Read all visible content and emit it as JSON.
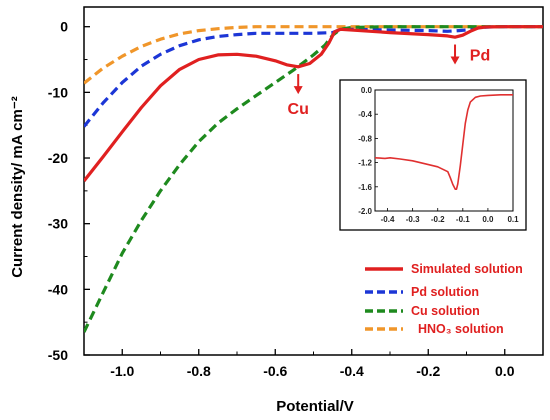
{
  "chart_data": {
    "type": "line",
    "xlabel": "Potential/V",
    "ylabel": "Current density/ mA cm⁻²",
    "xlim": [
      -1.1,
      0.1
    ],
    "ylim": [
      -50,
      3
    ],
    "xticks": [
      -1.0,
      -0.8,
      -0.6,
      -0.4,
      -0.2,
      0.0
    ],
    "xtick_labels": [
      "-1.0",
      "-0.8",
      "-0.6",
      "-0.4",
      "-0.2",
      "0.0"
    ],
    "yticks": [
      0,
      -10,
      -20,
      -30,
      -40,
      -50
    ],
    "ytick_labels": [
      "0",
      "-10",
      "-20",
      "-30",
      "-40",
      "-50"
    ],
    "grid": false,
    "legend_position": "bottom-right",
    "series": [
      {
        "name": "Simulated solution",
        "color": "#e02020",
        "style": "solid",
        "x": [
          -1.1,
          -1.05,
          -1.0,
          -0.95,
          -0.9,
          -0.85,
          -0.8,
          -0.75,
          -0.7,
          -0.65,
          -0.6,
          -0.57,
          -0.54,
          -0.51,
          -0.48,
          -0.46,
          -0.445,
          -0.43,
          -0.4,
          -0.3,
          -0.2,
          -0.15,
          -0.13,
          -0.11,
          -0.09,
          -0.07,
          -0.05,
          0.0,
          0.05,
          0.1
        ],
        "y": [
          -23.5,
          -19.8,
          -16.0,
          -12.3,
          -9.0,
          -6.5,
          -5.0,
          -4.3,
          -4.2,
          -4.5,
          -5.2,
          -5.8,
          -6.1,
          -5.6,
          -4.2,
          -2.5,
          -0.8,
          -0.4,
          -0.5,
          -0.9,
          -1.2,
          -1.4,
          -1.6,
          -1.3,
          -0.7,
          -0.2,
          -0.05,
          0.0,
          0.0,
          0.0
        ]
      },
      {
        "name": "Pd solution",
        "color": "#1c36d6",
        "style": "dashed",
        "x": [
          -1.1,
          -1.05,
          -1.0,
          -0.95,
          -0.9,
          -0.85,
          -0.8,
          -0.75,
          -0.7,
          -0.65,
          -0.6,
          -0.5,
          -0.45,
          -0.43,
          -0.4,
          -0.3,
          -0.2,
          -0.15,
          -0.12,
          -0.1,
          -0.08,
          -0.06,
          -0.04,
          0.0,
          0.05,
          0.1
        ],
        "y": [
          -15.2,
          -11.6,
          -8.5,
          -6.0,
          -4.2,
          -2.9,
          -2.0,
          -1.5,
          -1.2,
          -1.0,
          -1.0,
          -1.0,
          -0.9,
          -0.4,
          -0.4,
          -0.5,
          -0.6,
          -0.7,
          -0.6,
          -0.5,
          -0.3,
          -0.1,
          -0.05,
          0.0,
          0.0,
          0.0
        ]
      },
      {
        "name": "Cu solution",
        "color": "#1e8a1e",
        "style": "dashed",
        "x": [
          -1.1,
          -1.05,
          -1.0,
          -0.95,
          -0.9,
          -0.85,
          -0.8,
          -0.75,
          -0.7,
          -0.65,
          -0.6,
          -0.55,
          -0.5,
          -0.47,
          -0.45,
          -0.43,
          -0.4,
          -0.3,
          -0.2,
          -0.1,
          0.0,
          0.1
        ],
        "y": [
          -46.5,
          -40.5,
          -34.5,
          -29.5,
          -25.0,
          -21.0,
          -17.5,
          -14.7,
          -12.5,
          -10.5,
          -8.5,
          -6.5,
          -4.3,
          -2.8,
          -1.3,
          -0.4,
          -0.1,
          0.0,
          0.0,
          0.0,
          0.0,
          0.0
        ]
      },
      {
        "name": "HNO₃ solution",
        "color": "#f0962a",
        "style": "dashed",
        "x": [
          -1.1,
          -1.05,
          -1.0,
          -0.95,
          -0.9,
          -0.85,
          -0.8,
          -0.75,
          -0.7,
          -0.65,
          -0.6,
          -0.5,
          -0.4,
          -0.3,
          -0.2,
          -0.1,
          0.0,
          0.1
        ],
        "y": [
          -8.6,
          -6.3,
          -4.5,
          -3.0,
          -1.9,
          -1.1,
          -0.6,
          -0.3,
          -0.1,
          0.0,
          0.0,
          0.0,
          0.0,
          0.0,
          0.0,
          0.0,
          0.0,
          0.0
        ]
      }
    ],
    "annotations": [
      {
        "text": "Cu",
        "x": -0.54,
        "y": -6.3,
        "color": "#e02020"
      },
      {
        "text": "Pd",
        "x": -0.13,
        "y": -1.8,
        "color": "#e02020"
      }
    ],
    "inset": {
      "type": "line",
      "xlim": [
        -0.45,
        0.1
      ],
      "ylim": [
        -2.0,
        0.0
      ],
      "xticks": [
        -0.4,
        -0.3,
        -0.2,
        -0.1,
        0.0,
        0.1
      ],
      "xtick_labels": [
        "-0.4",
        "-0.3",
        "-0.2",
        "-0.1",
        "0.0",
        "0.1"
      ],
      "yticks": [
        0.0,
        -0.4,
        -0.8,
        -1.2,
        -1.6,
        -2.0
      ],
      "ytick_labels": [
        "0.0",
        "-0.4",
        "-0.8",
        "-1.2",
        "-1.6",
        "-2.0"
      ],
      "color": "#e03030",
      "x": [
        -0.45,
        -0.41,
        -0.39,
        -0.35,
        -0.3,
        -0.25,
        -0.2,
        -0.16,
        -0.15,
        -0.14,
        -0.13,
        -0.125,
        -0.12,
        -0.11,
        -0.1,
        -0.09,
        -0.08,
        -0.07,
        -0.05,
        -0.03,
        0.0,
        0.05,
        0.1
      ],
      "y": [
        -1.12,
        -1.13,
        -1.12,
        -1.14,
        -1.17,
        -1.22,
        -1.27,
        -1.35,
        -1.45,
        -1.56,
        -1.64,
        -1.64,
        -1.55,
        -1.25,
        -0.9,
        -0.55,
        -0.33,
        -0.2,
        -0.12,
        -0.1,
        -0.09,
        -0.08,
        -0.08
      ]
    }
  }
}
